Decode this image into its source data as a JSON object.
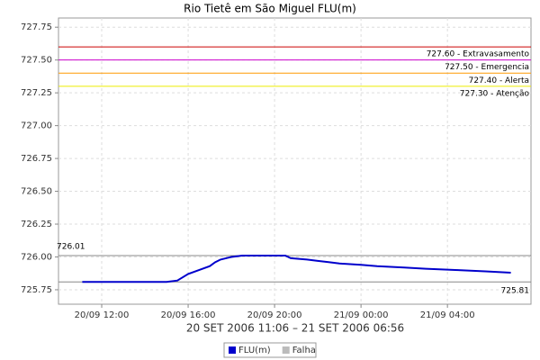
{
  "chart_data": {
    "type": "line",
    "title": "Rio Tietê em São Miguel FLU(m)",
    "x_label": "20 SET 2006 11:06 – 21 SET 2006 06:56",
    "x": [
      "2006-09-20T11:06",
      "2006-09-20T15:00",
      "2006-09-20T15:30",
      "2006-09-20T16:00",
      "2006-09-20T16:30",
      "2006-09-20T17:00",
      "2006-09-20T17:15",
      "2006-09-20T17:30",
      "2006-09-20T18:00",
      "2006-09-20T18:30",
      "2006-09-20T20:30",
      "2006-09-20T20:45",
      "2006-09-20T21:30",
      "2006-09-20T22:00",
      "2006-09-20T22:30",
      "2006-09-20T23:00",
      "2006-09-21T00:00",
      "2006-09-21T00:45",
      "2006-09-21T02:00",
      "2006-09-21T03:00",
      "2006-09-21T04:30",
      "2006-09-21T05:45",
      "2006-09-21T06:56"
    ],
    "series": [
      {
        "name": "FLU(m)",
        "color": "#0000cc",
        "values": [
          725.81,
          725.81,
          725.82,
          725.87,
          725.9,
          725.93,
          725.96,
          725.98,
          726.0,
          726.01,
          726.01,
          725.99,
          725.98,
          725.97,
          725.96,
          725.95,
          725.94,
          725.93,
          725.92,
          725.91,
          725.9,
          725.89,
          725.88
        ]
      },
      {
        "name": "Falha",
        "color": "#bbbbbb",
        "values": [
          null,
          null,
          null,
          null,
          null,
          null,
          null,
          null,
          null,
          null,
          null,
          null,
          null,
          null,
          null,
          null,
          null,
          null,
          null,
          null,
          null,
          null,
          null
        ]
      }
    ],
    "thresholds": [
      {
        "value": 727.6,
        "label": "727.60 - Extravasamento",
        "color": "#cc0000"
      },
      {
        "value": 727.5,
        "label": "727.50 - Emergencia",
        "color": "#cc00cc"
      },
      {
        "value": 727.4,
        "label": "727.40 - Alerta",
        "color": "#ff9900"
      },
      {
        "value": 727.3,
        "label": "727.30 - Atenção",
        "color": "#eeee00"
      }
    ],
    "markers": [
      {
        "value": 726.01,
        "position": "left",
        "color": "#888888"
      },
      {
        "value": 725.81,
        "position": "right",
        "color": "#888888"
      }
    ],
    "ylim": [
      725.64,
      727.82
    ],
    "yticks": [
      725.75,
      {
        "value": 726,
        "label": "726.00"
      },
      726.25,
      {
        "value": 726.5,
        "label": "726.50"
      },
      726.75,
      {
        "value": 727,
        "label": "727.00"
      },
      727.25,
      {
        "value": 727.5,
        "label": "727.50"
      },
      727.75
    ],
    "xlim": [
      "2006-09-20T10:00",
      "2006-09-21T07:52"
    ],
    "xticks": [
      {
        "value": "2006-09-20T12:00",
        "label": "20/09 12:00"
      },
      {
        "value": "2006-09-20T16:00",
        "label": "20/09 16:00"
      },
      {
        "value": "2006-09-20T20:00",
        "label": "20/09 20:00"
      },
      {
        "value": "2006-09-21T00:00",
        "label": "21/09 00:00"
      },
      {
        "value": "2006-09-21T04:00",
        "label": "21/09 04:00"
      }
    ],
    "grid": true
  }
}
